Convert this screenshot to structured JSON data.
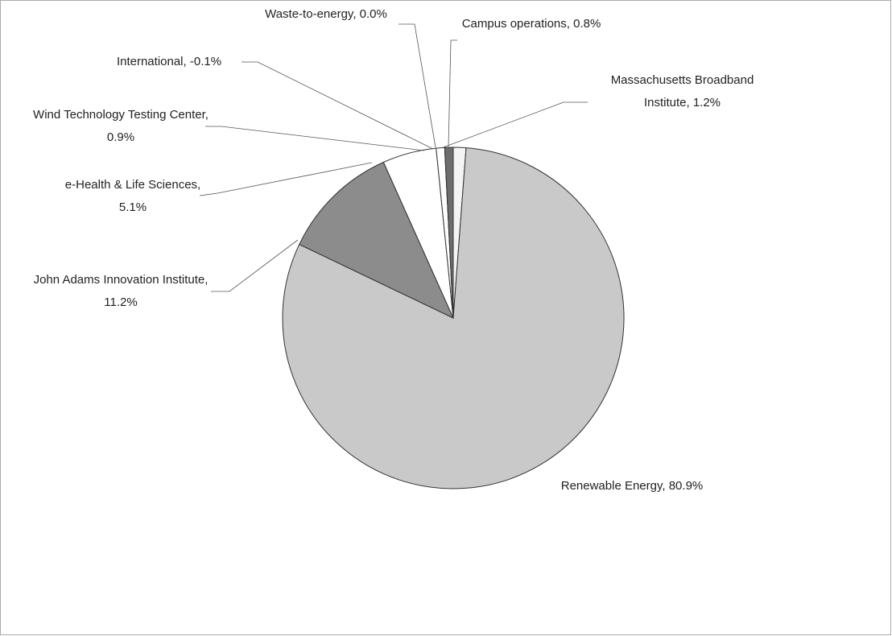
{
  "chart_data": {
    "type": "pie",
    "categories": [
      "Massachusetts Broadband Institute",
      "Renewable Energy",
      "John Adams Innovation Institute",
      "e-Health & Life Sciences",
      "Wind Technology Testing Center",
      "International",
      "Waste-to-energy",
      "Campus operations"
    ],
    "values": [
      1.2,
      80.9,
      11.2,
      5.1,
      0.9,
      -0.1,
      0.0,
      0.8
    ],
    "value_labels": [
      "1.2%",
      "80.9%",
      "11.2%",
      "5.1%",
      "0.9%",
      "-0.1%",
      "0.0%",
      "0.8%"
    ],
    "colors": [
      "#f4f4f4",
      "#c9c9c9",
      "#8c8c8c",
      "#ffffff",
      "#ffffff",
      "#ffffff",
      "#ffffff",
      "#6e6e6e"
    ]
  }
}
